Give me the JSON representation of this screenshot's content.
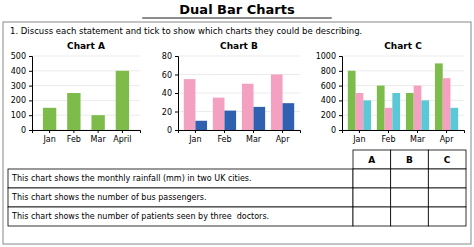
{
  "title": "Dual Bar Charts",
  "question": "1. Discuss each statement and tick to show which charts they could be describing.",
  "chart_data": [
    {
      "type": "bar",
      "title": "Chart A",
      "categories": [
        "Jan",
        "Feb",
        "Mar",
        "April"
      ],
      "values": [
        150,
        250,
        100,
        400
      ],
      "color": "#7dbb4a",
      "ylim": [
        0,
        500
      ],
      "yticks": [
        0,
        100,
        200,
        300,
        400,
        500
      ],
      "grid": true
    },
    {
      "type": "bar",
      "title": "Chart B",
      "categories": [
        "Jan",
        "Feb",
        "Mar",
        "Apr"
      ],
      "series": [
        {
          "color": "#f4a0c0",
          "values": [
            55,
            35,
            50,
            60
          ]
        },
        {
          "color": "#3060b0",
          "values": [
            10,
            21,
            25,
            29
          ]
        }
      ],
      "ylim": [
        0,
        80
      ],
      "yticks": [
        0,
        20,
        40,
        60,
        80
      ],
      "grid": true
    },
    {
      "type": "bar",
      "title": "Chart C",
      "categories": [
        "Jan",
        "Feb",
        "Mar",
        "Apr"
      ],
      "series": [
        {
          "color": "#7dbb4a",
          "values": [
            800,
            600,
            500,
            900
          ]
        },
        {
          "color": "#f4a0c0",
          "values": [
            500,
            300,
            600,
            700
          ]
        },
        {
          "color": "#5bc8d5",
          "values": [
            400,
            500,
            400,
            300
          ]
        }
      ],
      "ylim": [
        0,
        1000
      ],
      "yticks": [
        0,
        200,
        400,
        600,
        800,
        1000
      ],
      "grid": true
    }
  ],
  "table_headers": [
    "A",
    "B",
    "C"
  ],
  "table_rows": [
    "This chart shows the monthly rainfall (mm) in two UK cities.",
    "This chart shows the number of bus passengers.",
    "This chart shows the number of patients seen by three  doctors."
  ]
}
